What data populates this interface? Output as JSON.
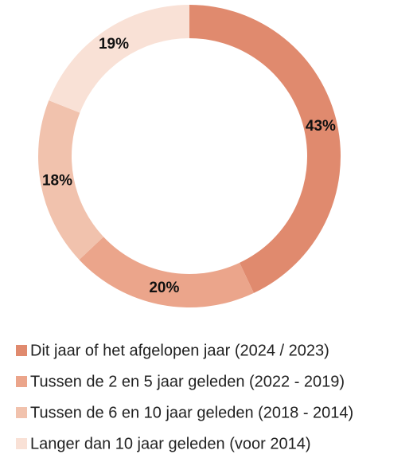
{
  "chart_data": {
    "type": "donut",
    "categories": [
      "Dit jaar of het afgelopen jaar (2024 / 2023)",
      "Tussen de 2 en 5 jaar geleden (2022 - 2019)",
      "Tussen de 6 en 10 jaar geleden (2018 - 2014)",
      "Langer dan 10 jaar geleden (voor 2014)"
    ],
    "values": [
      43,
      20,
      18,
      19
    ],
    "value_labels": [
      "43%",
      "20%",
      "18%",
      "19%"
    ],
    "colors": [
      "#e08a6e",
      "#eba58b",
      "#f1c2ad",
      "#f9e1d6"
    ],
    "legend": "bottom"
  }
}
